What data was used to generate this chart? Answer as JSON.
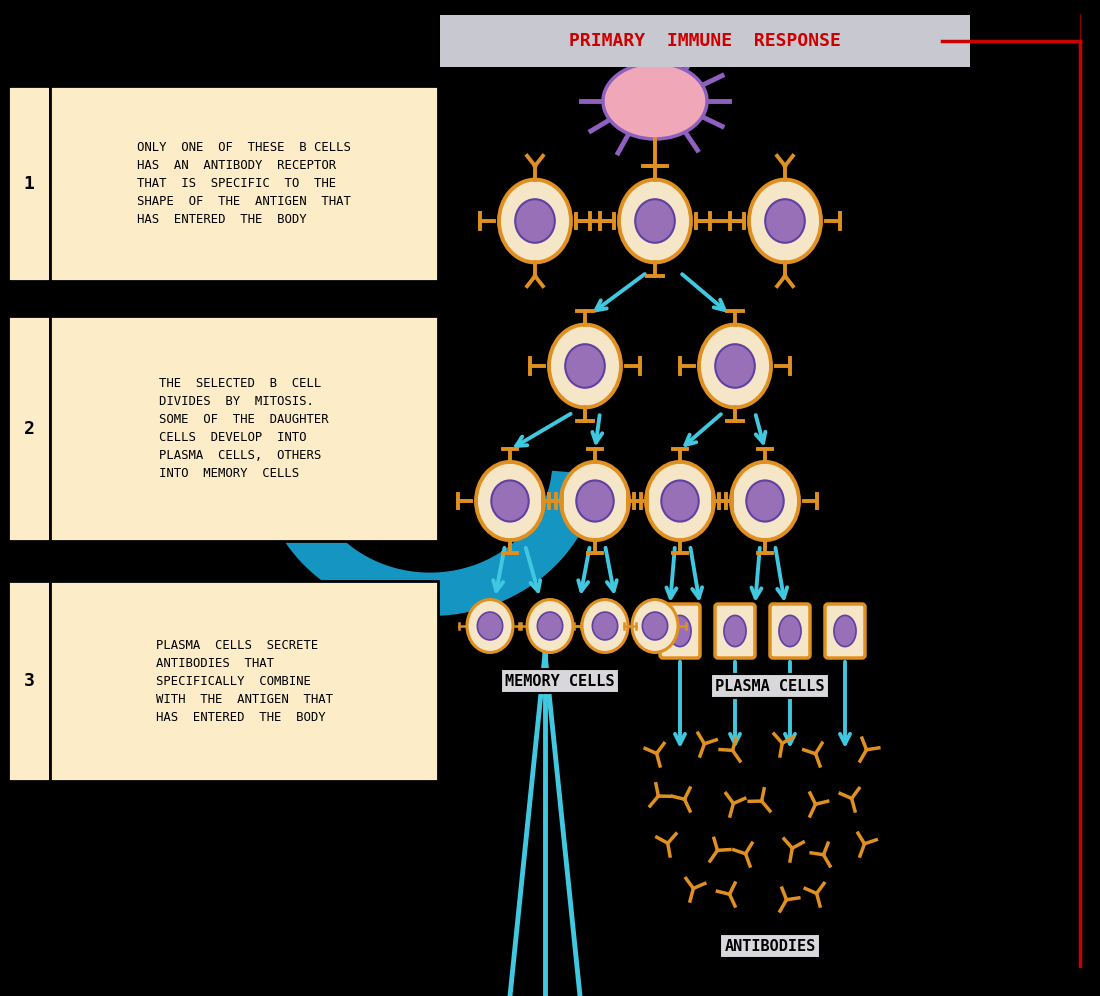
{
  "bg_color": "#000000",
  "cell_outer_color": "#F5E6C8",
  "cell_nucleus_color": "#9870B8",
  "cell_border_color": "#E09020",
  "receptor_color": "#E09020",
  "arrow_color": "#40C8E0",
  "antigen_color": "#F0A8B8",
  "antigen_spike_color": "#9060C0",
  "text_box_bg": "#FDECC8",
  "title_text": "PRIMARY  IMMUNE  RESPONSE",
  "title_bg": "#C8C8D0",
  "title_text_color": "#CC0000",
  "label_memory": "MEMORY CELLS",
  "label_plasma": "PLASMA CELLS",
  "label_antibodies": "ANTIBODIES",
  "red_border_color": "#CC0000",
  "box1_text": "ONLY  ONE  OF  THESE  B CELLS\nHAS  AN  ANTIBODY  RECEPTOR\nTHAT  IS  SPECIFIC  TO  THE\nSHAPE  OF  THE  ANTIGEN  THAT\nHAS  ENTERED  THE  BODY",
  "box2_text": "THE  SELECTED  B  CELL\nDIVIDES  BY  MITOSIS.\nSOME  OF  THE  DAUGHTER\nCELLS  DEVELOP  INTO\nPLASMA  CELLS,  OTHERS\nINTO  MEMORY  CELLS",
  "box3_text": "PLASMA  CELLS  SECRETE\nANTIBODIES  THAT\nSPECIFICALLY  COMBINE\nWITH  THE  ANTIGEN  THAT\nHAS  ENTERED  THE  BODY",
  "blue_swirl_color": "#18A8D8"
}
